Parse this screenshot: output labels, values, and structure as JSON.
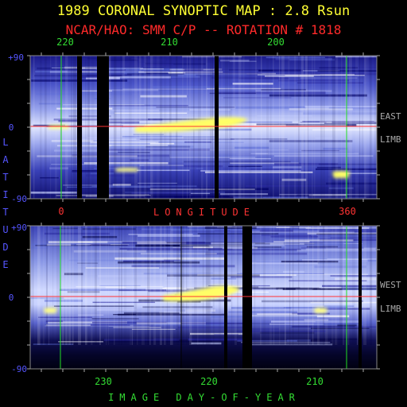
{
  "title": "1989 CORONAL SYNOPTIC MAP : 2.8 Rsun",
  "subtitle": "NCAR/HAO: SMM C/P -- ROTATION # 1818",
  "side_labels": {
    "east": "EAST",
    "east_limb": "LIMB",
    "west": "WEST",
    "west_limb": "LIMB"
  },
  "colors": {
    "title": "#ffff33",
    "subtitle": "#ff2a2a",
    "axis_blue": "#5555ff",
    "axis_green": "#33dd33",
    "axis_red": "#ff3333",
    "marker": "#22dd22",
    "equator": "#ff3333"
  },
  "chart_data": [
    {
      "type": "heatmap",
      "panel": "east-limb",
      "top_axis_ticks": [
        "220",
        "210",
        "200"
      ],
      "top_axis_values": [
        220,
        210,
        200
      ],
      "bottom_axis_ticks": [
        "0",
        "360"
      ],
      "bottom_axis_values": [
        0,
        360
      ],
      "xlabel": "LONGITUDE",
      "ylabel": "LATITUDE",
      "y_ticks": [
        "+90",
        "0",
        "-90"
      ],
      "ylim": [
        -90,
        90
      ],
      "data_gaps": [
        "gap-1",
        "gap-2",
        "gap-3"
      ],
      "bright_band_latitude": 0
    },
    {
      "type": "heatmap",
      "panel": "west-limb",
      "bottom_axis_ticks": [
        "230",
        "220",
        "210"
      ],
      "bottom_axis_values": [
        230,
        220,
        210
      ],
      "xlabel": "IMAGE DAY-OF-YEAR",
      "ylabel": "LATITUDE",
      "y_ticks": [
        "+90",
        "0",
        "-90"
      ],
      "ylim": [
        -90,
        90
      ],
      "data_gaps": [
        "gap-1",
        "gap-2",
        "gap-3"
      ],
      "bright_band_latitude": 0
    }
  ]
}
